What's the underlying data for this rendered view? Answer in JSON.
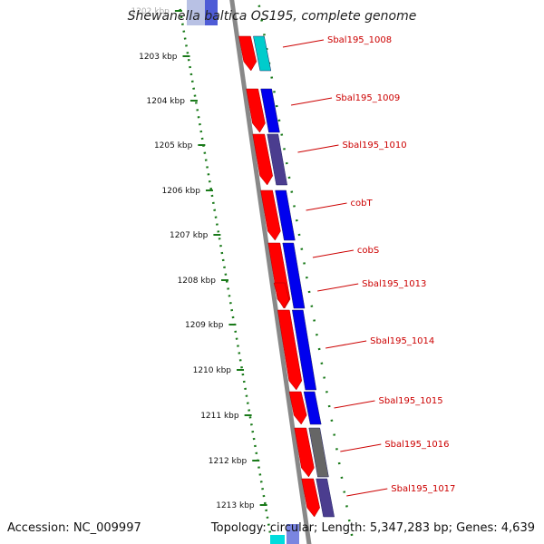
{
  "title": "Shewanella baltica OS195, complete genome",
  "accession": "Accession: NC_009997",
  "summary": "Topology: circular; Length: 5,347,283 bp; Genes: 4,639",
  "colors": {
    "forward_strand": "#ff0000",
    "cds": "#0000ee",
    "rna": "#00cccc",
    "other": "#666666",
    "mixed": "#4b3d8f",
    "backbone": "#888888",
    "ticks": "#1a7a1a",
    "label": "#cc0000"
  },
  "kbp_ticks": [
    "1202 kbp",
    "1203 kbp",
    "1204 kbp",
    "1205 kbp",
    "1206 kbp",
    "1207 kbp",
    "1208 kbp",
    "1209 kbp",
    "1210 kbp",
    "1211 kbp",
    "1212 kbp",
    "1213 kbp"
  ],
  "genes": [
    {
      "label": "Sbal195_1008",
      "color_key": "rna"
    },
    {
      "label": "Sbal195_1009",
      "color_key": "cds"
    },
    {
      "label": "Sbal195_1010",
      "color_key": "mixed"
    },
    {
      "label": "cobT",
      "color_key": "cds"
    },
    {
      "label": "cobS",
      "color_key": "cds"
    },
    {
      "label": "Sbal195_1013",
      "color_key": "cds"
    },
    {
      "label": "Sbal195_1014",
      "color_key": "cds"
    },
    {
      "label": "Sbal195_1015",
      "color_key": "cds"
    },
    {
      "label": "Sbal195_1016",
      "color_key": "other"
    },
    {
      "label": "Sbal195_1017",
      "color_key": "mixed"
    }
  ]
}
